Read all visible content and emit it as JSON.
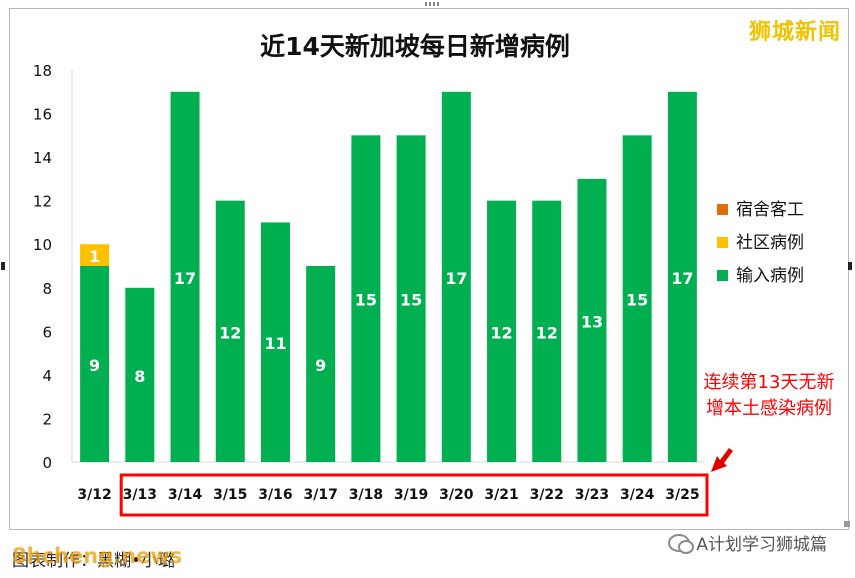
{
  "brand": "狮城新闻",
  "caption": "图表制作：黑糊•小璐",
  "watermark": "8hcheng.news",
  "wechat_account": "A计划学习狮城篇",
  "annotation": {
    "line1": "连续第13天无新",
    "line2": "增本土感染病例"
  },
  "colors": {
    "imported": "#00b050",
    "community": "#ffc000",
    "dorm": "#e36c09",
    "annotation": "#ff0000"
  },
  "chart_data": {
    "type": "bar",
    "stacked": true,
    "title": "近14天新加坡每日新增病例",
    "categories": [
      "3/12",
      "3/13",
      "3/14",
      "3/15",
      "3/16",
      "3/17",
      "3/18",
      "3/19",
      "3/20",
      "3/21",
      "3/22",
      "3/23",
      "3/24",
      "3/25"
    ],
    "series": [
      {
        "name": "输入病例",
        "color": "#00b050",
        "values": [
          9,
          8,
          17,
          12,
          11,
          9,
          15,
          15,
          17,
          12,
          12,
          13,
          15,
          17
        ]
      },
      {
        "name": "社区病例",
        "color": "#ffc000",
        "values": [
          1,
          0,
          0,
          0,
          0,
          0,
          0,
          0,
          0,
          0,
          0,
          0,
          0,
          0
        ]
      },
      {
        "name": "宿舍客工",
        "color": "#e36c09",
        "values": [
          0,
          0,
          0,
          0,
          0,
          0,
          0,
          0,
          0,
          0,
          0,
          0,
          0,
          0
        ]
      }
    ],
    "legend_order": [
      "宿舍客工",
      "社区病例",
      "输入病例"
    ],
    "ylim": [
      0,
      18
    ],
    "yticks": [
      0,
      2,
      4,
      6,
      8,
      10,
      12,
      14,
      16,
      18
    ],
    "legend_position": "right",
    "highlighted_categories": [
      "3/13",
      "3/14",
      "3/15",
      "3/16",
      "3/17",
      "3/18",
      "3/19",
      "3/20",
      "3/21",
      "3/22",
      "3/23",
      "3/24",
      "3/25"
    ]
  }
}
